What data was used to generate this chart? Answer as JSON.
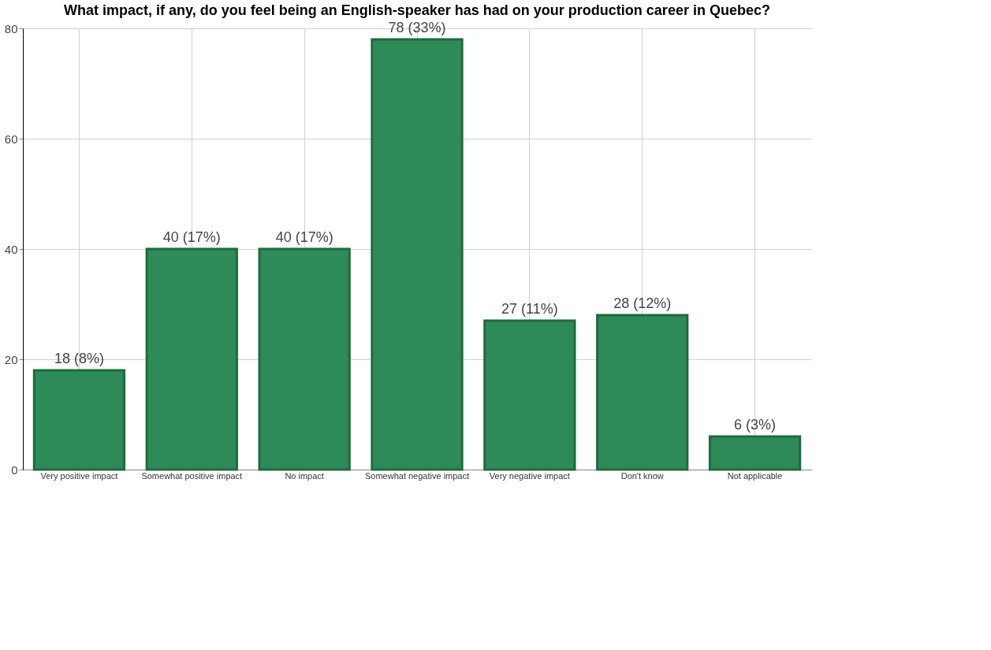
{
  "chart_data": {
    "type": "bar",
    "title": "What impact, if any, do you feel being an  English-speaker has had on your production career in Quebec?",
    "categories": [
      "Very positive impact",
      "Somewhat positive impact",
      "No impact",
      "Somewhat negative impact",
      "Very negative impact",
      "Don't know",
      "Not applicable"
    ],
    "values": [
      18,
      40,
      40,
      78,
      27,
      28,
      6
    ],
    "value_labels": [
      "18 (8%)",
      "40 (17%)",
      "40 (17%)",
      "78 (33%)",
      "27 (11%)",
      "28 (12%)",
      "6 (3%)"
    ],
    "color": "#2e8b57",
    "ylim": [
      0,
      80
    ],
    "yticks": [
      0,
      20,
      40,
      60,
      80
    ],
    "grid": true
  }
}
